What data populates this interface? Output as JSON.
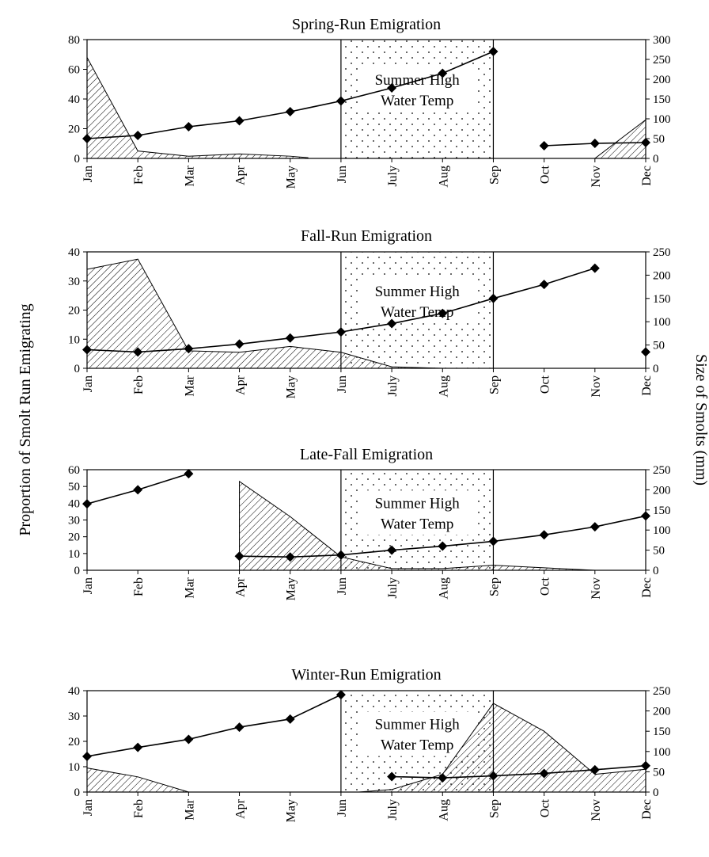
{
  "chart_data": {
    "type": "area",
    "y_axis_label": "Proportion of Smolt Run Emigrating",
    "y2_axis_label": "Size of Smolts (mm)",
    "months": [
      "Jan",
      "Feb",
      "Mar",
      "Apr",
      "May",
      "Jun",
      "July",
      "Aug",
      "Sep",
      "Oct",
      "Nov",
      "Dec"
    ],
    "panels": [
      {
        "title": "Spring-Run Emigration",
        "ylim": [
          0,
          80
        ],
        "yticks": [
          "0",
          "20",
          "40",
          "60",
          "80"
        ],
        "y2lim": [
          0,
          300
        ],
        "y2ticks": [
          "0",
          "50",
          "100",
          "150",
          "200",
          "250",
          "300"
        ],
        "annotation": [
          "Summer High",
          "Water Temp"
        ],
        "summer_span": [
          "Jun",
          "Sep"
        ],
        "series": [
          {
            "kind": "proportion-area",
            "points": [
              [
                "Jan",
                68
              ],
              [
                "Feb",
                5
              ],
              [
                "Mar",
                1.5
              ],
              [
                "Apr",
                3
              ],
              [
                "May",
                1.5
              ],
              [
                "May+",
                0.5
              ]
            ]
          },
          {
            "kind": "proportion-area",
            "points": [
              [
                "Nov",
                0
              ],
              [
                "Dec",
                26
              ]
            ]
          },
          {
            "kind": "size-line",
            "points": [
              [
                "Jan",
                50
              ],
              [
                "Feb",
                58
              ],
              [
                "Mar",
                80
              ],
              [
                "Apr",
                95
              ],
              [
                "May",
                118
              ],
              [
                "Jun",
                145
              ],
              [
                "July",
                178
              ],
              [
                "Aug",
                215
              ],
              [
                "Sep",
                270
              ]
            ]
          },
          {
            "kind": "size-line",
            "points": [
              [
                "Oct",
                32
              ],
              [
                "Nov",
                38
              ],
              [
                "Dec",
                40
              ]
            ]
          }
        ]
      },
      {
        "title": "Fall-Run Emigration",
        "ylim": [
          0,
          40
        ],
        "yticks": [
          "0",
          "10",
          "20",
          "30",
          "40"
        ],
        "y2lim": [
          0,
          250
        ],
        "y2ticks": [
          "0",
          "50",
          "100",
          "150",
          "200",
          "250"
        ],
        "annotation": [
          "Summer High",
          "Water Temp"
        ],
        "summer_span": [
          "Jun",
          "Sep"
        ],
        "series": [
          {
            "kind": "proportion-area",
            "points": [
              [
                "Jan",
                34
              ],
              [
                "Feb",
                37.5
              ],
              [
                "Mar",
                6
              ],
              [
                "Apr",
                5.5
              ],
              [
                "May",
                7.5
              ],
              [
                "Jun",
                5.5
              ],
              [
                "July",
                0.5
              ],
              [
                "Aug",
                0
              ]
            ]
          },
          {
            "kind": "size-line",
            "points": [
              [
                "Jan",
                40
              ],
              [
                "Feb",
                35
              ],
              [
                "Mar",
                42
              ],
              [
                "Apr",
                52
              ],
              [
                "May",
                65
              ],
              [
                "Jun",
                78
              ],
              [
                "July",
                96
              ],
              [
                "Aug",
                118
              ],
              [
                "Sep",
                150
              ],
              [
                "Oct",
                180
              ],
              [
                "Nov",
                215
              ]
            ]
          },
          {
            "kind": "size-point",
            "points": [
              [
                "Dec",
                35
              ]
            ]
          }
        ]
      },
      {
        "title": "Late-Fall Emigration",
        "ylim": [
          0,
          60
        ],
        "yticks": [
          "0",
          "10",
          "20",
          "30",
          "40",
          "50",
          "60"
        ],
        "y2lim": [
          0,
          250
        ],
        "y2ticks": [
          "0",
          "50",
          "100",
          "150",
          "200",
          "250"
        ],
        "annotation": [
          "Summer High",
          "Water Temp"
        ],
        "summer_span": [
          "Jun",
          "Sep"
        ],
        "series": [
          {
            "kind": "proportion-area",
            "points": [
              [
                "Apr",
                53
              ],
              [
                "May",
                32
              ],
              [
                "Jun",
                8
              ],
              [
                "July",
                1
              ],
              [
                "Aug",
                1
              ],
              [
                "Sep",
                3
              ],
              [
                "Oct",
                1.5
              ],
              [
                "Nov",
                0
              ]
            ]
          },
          {
            "kind": "size-line",
            "points": [
              [
                "Jan",
                165
              ],
              [
                "Feb",
                200
              ],
              [
                "Mar",
                240
              ]
            ]
          },
          {
            "kind": "size-line",
            "points": [
              [
                "Apr",
                35
              ],
              [
                "May",
                33
              ],
              [
                "Jun",
                38
              ],
              [
                "July",
                50
              ],
              [
                "Aug",
                60
              ],
              [
                "Sep",
                72
              ],
              [
                "Oct",
                88
              ],
              [
                "Nov",
                108
              ],
              [
                "Dec",
                135
              ]
            ]
          }
        ]
      },
      {
        "title": "Winter-Run Emigration",
        "ylim": [
          0,
          40
        ],
        "yticks": [
          "0",
          "10",
          "20",
          "30",
          "40"
        ],
        "y2lim": [
          0,
          250
        ],
        "y2ticks": [
          "0",
          "50",
          "100",
          "150",
          "200",
          "250"
        ],
        "annotation": [
          "Summer High",
          "Water Temp"
        ],
        "summer_span": [
          "Jun",
          "Sep"
        ],
        "series": [
          {
            "kind": "proportion-area",
            "points": [
              [
                "Jan",
                9.5
              ],
              [
                "Feb",
                6
              ],
              [
                "Mar",
                0
              ]
            ]
          },
          {
            "kind": "proportion-area",
            "points": [
              [
                "Jun+",
                0
              ],
              [
                "July",
                1
              ],
              [
                "Aug",
                7
              ],
              [
                "Sep",
                35
              ],
              [
                "Oct",
                24
              ],
              [
                "Nov",
                7
              ],
              [
                "Dec",
                9
              ]
            ]
          },
          {
            "kind": "size-line",
            "points": [
              [
                "Jan",
                88
              ],
              [
                "Feb",
                110
              ],
              [
                "Mar",
                130
              ],
              [
                "Apr",
                160
              ],
              [
                "May",
                180
              ],
              [
                "Jun",
                240
              ]
            ]
          },
          {
            "kind": "size-line",
            "points": [
              [
                "July",
                38
              ],
              [
                "Aug",
                35
              ],
              [
                "Sep",
                40
              ],
              [
                "Oct",
                46
              ],
              [
                "Nov",
                55
              ],
              [
                "Dec",
                65
              ]
            ]
          }
        ]
      }
    ]
  }
}
